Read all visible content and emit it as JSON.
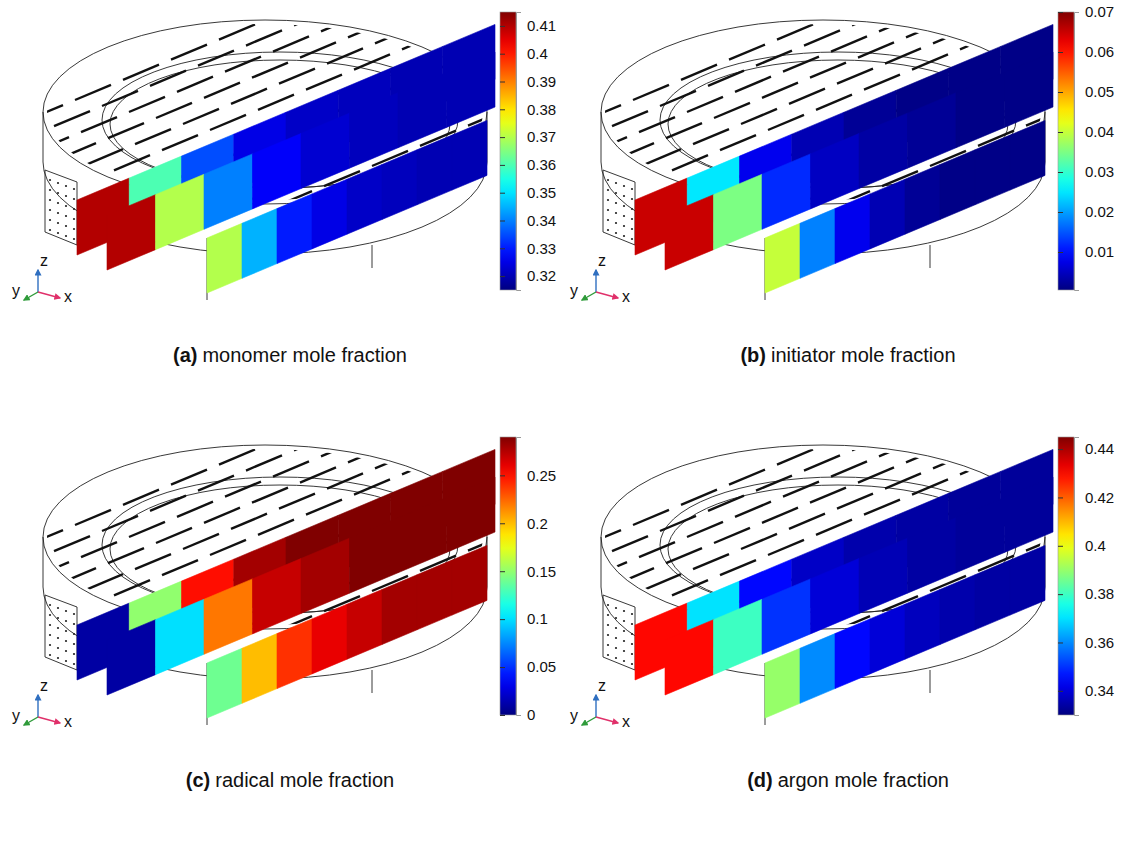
{
  "chart_data": [
    {
      "type": "heatmap",
      "panel": "(a)",
      "title": "monomer mole fraction",
      "axis_labels": {
        "x": "x",
        "y": "y",
        "z": "z"
      },
      "cells": [
        [
          0.41,
          0.36,
          0.335,
          0.325,
          0.322,
          0.321,
          0.32,
          0.32
        ],
        [
          0.41,
          0.37,
          0.34,
          0.327,
          0.323,
          0.321,
          0.32,
          0.32
        ],
        [
          0.37,
          0.345,
          0.33,
          0.325,
          0.322,
          0.321,
          0.32,
          0.32
        ]
      ],
      "colorbar": {
        "range": [
          0.315,
          0.415
        ],
        "ticks": [
          0.32,
          0.33,
          0.34,
          0.35,
          0.36,
          0.37,
          0.38,
          0.39,
          0.4,
          0.41
        ]
      }
    },
    {
      "type": "heatmap",
      "panel": "(b)",
      "title": "initiator mole fraction",
      "axis_labels": {
        "x": "x",
        "y": "y",
        "z": "z"
      },
      "cells": [
        [
          0.065,
          0.025,
          0.008,
          0.004,
          0.002,
          0.001,
          0.001,
          0.001
        ],
        [
          0.065,
          0.035,
          0.012,
          0.005,
          0.003,
          0.002,
          0.001,
          0.001
        ],
        [
          0.04,
          0.018,
          0.008,
          0.004,
          0.002,
          0.001,
          0.001,
          0.001
        ]
      ],
      "colorbar": {
        "range": [
          0.0005,
          0.07
        ],
        "ticks": [
          0.01,
          0.02,
          0.03,
          0.04,
          0.05,
          0.06,
          0.07
        ]
      }
    },
    {
      "type": "heatmap",
      "panel": "(c)",
      "title": "radical mole fraction",
      "axis_labels": {
        "x": "x",
        "y": "y",
        "z": "z"
      },
      "cells": [
        [
          0.01,
          0.15,
          0.25,
          0.28,
          0.29,
          0.29,
          0.29,
          0.29
        ],
        [
          0.01,
          0.1,
          0.22,
          0.27,
          0.28,
          0.29,
          0.29,
          0.29
        ],
        [
          0.14,
          0.2,
          0.24,
          0.26,
          0.27,
          0.28,
          0.28,
          0.28
        ]
      ],
      "colorbar": {
        "range": [
          0,
          0.29
        ],
        "ticks": [
          0,
          0.05,
          0.1,
          0.15,
          0.2,
          0.25
        ]
      }
    },
    {
      "type": "heatmap",
      "panel": "(d)",
      "title": "argon mole fraction",
      "axis_labels": {
        "x": "x",
        "y": "y",
        "z": "z"
      },
      "cells": [
        [
          0.43,
          0.37,
          0.345,
          0.338,
          0.335,
          0.334,
          0.333,
          0.333
        ],
        [
          0.43,
          0.38,
          0.35,
          0.34,
          0.336,
          0.334,
          0.333,
          0.333
        ],
        [
          0.39,
          0.36,
          0.345,
          0.34,
          0.337,
          0.335,
          0.334,
          0.334
        ]
      ],
      "colorbar": {
        "range": [
          0.33,
          0.445
        ],
        "ticks": [
          0.34,
          0.36,
          0.38,
          0.4,
          0.42,
          0.44
        ]
      }
    }
  ]
}
